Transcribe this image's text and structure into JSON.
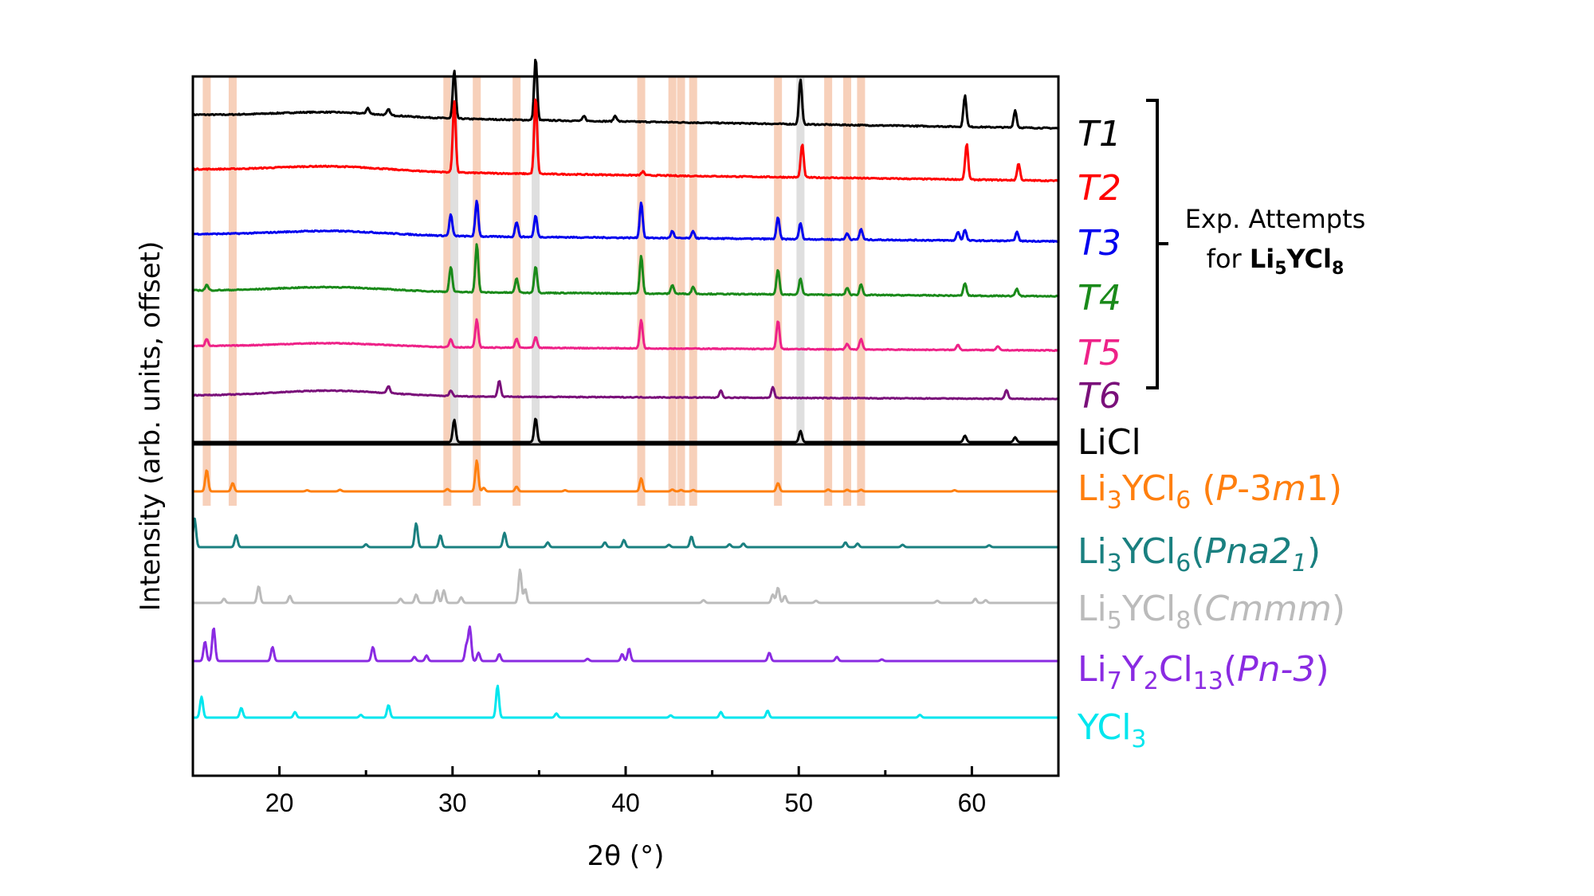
{
  "chart_data": {
    "type": "line",
    "xlabel": "2θ (°)",
    "ylabel": "Intensity (arb. units, offset)",
    "xlim": [
      15,
      65
    ],
    "xticks": [
      20,
      30,
      40,
      50,
      60
    ],
    "yticks": "none",
    "annotation": {
      "line1": "Exp. Attempts",
      "line2_prefix": "for ",
      "line2_formula": [
        "Li",
        "5",
        "YCl",
        "8"
      ]
    },
    "orange_bands": [
      15.8,
      17.3,
      29.7,
      31.4,
      33.7,
      40.9,
      42.7,
      43.2,
      43.9,
      48.8,
      51.7,
      52.8,
      53.6
    ],
    "gray_bands": [
      30.1,
      34.8,
      50.1
    ],
    "series": [
      {
        "id": "T1",
        "label": "T1",
        "color": "#000000",
        "base": 0.7,
        "hump": 0.1,
        "noise": 0.012,
        "peaks": [
          [
            25.1,
            0.12
          ],
          [
            26.3,
            0.12
          ],
          [
            30.1,
            1.0
          ],
          [
            34.8,
            1.3
          ],
          [
            37.6,
            0.1
          ],
          [
            39.4,
            0.12
          ],
          [
            50.1,
            0.95
          ],
          [
            59.6,
            0.65
          ],
          [
            62.5,
            0.36
          ]
        ]
      },
      {
        "id": "T2",
        "label": "T2",
        "color": "#ff0000",
        "base": 0.6,
        "hump": 0.1,
        "noise": 0.012,
        "peaks": [
          [
            30.1,
            1.5
          ],
          [
            34.8,
            1.6
          ],
          [
            41.0,
            0.08
          ],
          [
            50.2,
            0.7
          ],
          [
            59.7,
            0.75
          ],
          [
            62.7,
            0.35
          ]
        ]
      },
      {
        "id": "T3",
        "label": "T3",
        "color": "#0000ee",
        "base": 0.5,
        "hump": 0.12,
        "noise": 0.016,
        "peaks": [
          [
            29.9,
            0.6
          ],
          [
            31.4,
            1.0
          ],
          [
            33.7,
            0.42
          ],
          [
            34.8,
            0.6
          ],
          [
            40.9,
            1.0
          ],
          [
            42.7,
            0.2
          ],
          [
            43.9,
            0.2
          ],
          [
            48.8,
            0.6
          ],
          [
            50.1,
            0.45
          ],
          [
            52.8,
            0.18
          ],
          [
            53.6,
            0.3
          ],
          [
            59.2,
            0.25
          ],
          [
            59.6,
            0.3
          ],
          [
            62.6,
            0.25
          ]
        ]
      },
      {
        "id": "T4",
        "label": "T4",
        "color": "#1a8a1a",
        "base": 0.4,
        "hump": 0.12,
        "noise": 0.014,
        "peaks": [
          [
            15.8,
            0.15
          ],
          [
            29.9,
            0.7
          ],
          [
            31.4,
            1.35
          ],
          [
            33.7,
            0.4
          ],
          [
            34.8,
            0.75
          ],
          [
            40.9,
            1.05
          ],
          [
            42.7,
            0.25
          ],
          [
            43.9,
            0.2
          ],
          [
            48.8,
            0.7
          ],
          [
            50.1,
            0.45
          ],
          [
            52.8,
            0.2
          ],
          [
            53.6,
            0.3
          ],
          [
            59.6,
            0.35
          ],
          [
            62.6,
            0.2
          ]
        ]
      },
      {
        "id": "T5",
        "label": "T5",
        "color": "#ee2288",
        "base": 0.3,
        "hump": 0.1,
        "noise": 0.012,
        "peaks": [
          [
            15.8,
            0.2
          ],
          [
            29.9,
            0.22
          ],
          [
            31.4,
            0.78
          ],
          [
            33.7,
            0.25
          ],
          [
            34.8,
            0.3
          ],
          [
            40.9,
            0.8
          ],
          [
            48.8,
            0.8
          ],
          [
            52.8,
            0.15
          ],
          [
            53.6,
            0.3
          ],
          [
            59.2,
            0.15
          ],
          [
            61.5,
            0.1
          ]
        ]
      },
      {
        "id": "T6",
        "label": "T6",
        "color": "#7a107a",
        "base": 0.25,
        "hump": 0.15,
        "noise": 0.012,
        "peaks": [
          [
            26.3,
            0.2
          ],
          [
            29.9,
            0.15
          ],
          [
            32.7,
            0.45
          ],
          [
            45.5,
            0.2
          ],
          [
            48.5,
            0.3
          ],
          [
            62.0,
            0.25
          ]
        ]
      },
      {
        "id": "LiCl",
        "label": "LiCl",
        "color": "#000000",
        "base": 0.0,
        "hump": 0.0,
        "noise": 0.0,
        "peaks": [
          [
            30.1,
            0.7
          ],
          [
            34.8,
            0.75
          ],
          [
            50.1,
            0.35
          ],
          [
            59.6,
            0.2
          ],
          [
            62.5,
            0.15
          ]
        ]
      },
      {
        "id": "Li3YCl6-P3m1",
        "label": "Li3YCl6 (P-3m1)",
        "color": "#ff7f0e",
        "base": 0.0,
        "hump": 0.0,
        "noise": 0.0,
        "peaks": [
          [
            15.8,
            0.9
          ],
          [
            17.3,
            0.35
          ],
          [
            21.6,
            0.05
          ],
          [
            23.5,
            0.07
          ],
          [
            29.7,
            0.1
          ],
          [
            31.4,
            1.3
          ],
          [
            31.8,
            0.15
          ],
          [
            33.7,
            0.2
          ],
          [
            36.5,
            0.05
          ],
          [
            40.9,
            0.55
          ],
          [
            42.7,
            0.08
          ],
          [
            43.2,
            0.06
          ],
          [
            43.9,
            0.06
          ],
          [
            48.8,
            0.35
          ],
          [
            51.7,
            0.08
          ],
          [
            52.8,
            0.07
          ],
          [
            53.6,
            0.07
          ],
          [
            59.0,
            0.05
          ]
        ]
      },
      {
        "id": "Li3YCl6-Pna21",
        "label": "Li3YCl6 (Pna21)",
        "color": "#1a8080",
        "base": 0.0,
        "hump": 0.0,
        "noise": 0.0,
        "peaks": [
          [
            15.1,
            1.2
          ],
          [
            17.5,
            0.5
          ],
          [
            25.0,
            0.12
          ],
          [
            27.9,
            1.0
          ],
          [
            29.3,
            0.5
          ],
          [
            33.0,
            0.6
          ],
          [
            35.5,
            0.2
          ],
          [
            38.8,
            0.2
          ],
          [
            39.9,
            0.3
          ],
          [
            42.5,
            0.1
          ],
          [
            43.8,
            0.45
          ],
          [
            46.0,
            0.12
          ],
          [
            46.8,
            0.15
          ],
          [
            52.7,
            0.2
          ],
          [
            53.4,
            0.15
          ],
          [
            56.0,
            0.1
          ],
          [
            61.0,
            0.08
          ]
        ]
      },
      {
        "id": "Li5YCl8-Cmmm",
        "label": "Li5YCl8 (Cmmm)",
        "color": "#bbbbbb",
        "base": 0.0,
        "hump": 0.0,
        "noise": 0.0,
        "peaks": [
          [
            16.8,
            0.15
          ],
          [
            18.8,
            0.6
          ],
          [
            20.6,
            0.25
          ],
          [
            27.0,
            0.15
          ],
          [
            27.9,
            0.3
          ],
          [
            29.1,
            0.45
          ],
          [
            29.5,
            0.45
          ],
          [
            30.5,
            0.2
          ],
          [
            33.9,
            1.2
          ],
          [
            34.2,
            0.5
          ],
          [
            44.5,
            0.1
          ],
          [
            48.5,
            0.3
          ],
          [
            48.8,
            0.55
          ],
          [
            49.2,
            0.25
          ],
          [
            51.0,
            0.08
          ],
          [
            58.0,
            0.08
          ],
          [
            60.2,
            0.15
          ],
          [
            60.8,
            0.1
          ]
        ]
      },
      {
        "id": "Li7Y2Cl13-Pn3",
        "label": "Li7Y2Cl13 (Pn-3)",
        "color": "#8a2be2",
        "base": 0.0,
        "hump": 0.0,
        "noise": 0.0,
        "peaks": [
          [
            15.7,
            0.7
          ],
          [
            16.2,
            1.2
          ],
          [
            19.6,
            0.5
          ],
          [
            25.4,
            0.5
          ],
          [
            27.8,
            0.15
          ],
          [
            28.5,
            0.2
          ],
          [
            30.8,
            0.55
          ],
          [
            31.0,
            1.2
          ],
          [
            31.5,
            0.3
          ],
          [
            32.7,
            0.25
          ],
          [
            37.8,
            0.08
          ],
          [
            39.8,
            0.25
          ],
          [
            40.2,
            0.45
          ],
          [
            48.3,
            0.3
          ],
          [
            52.2,
            0.15
          ],
          [
            54.8,
            0.06
          ]
        ]
      },
      {
        "id": "YCl3",
        "label": "YCl3",
        "color": "#00e6ee",
        "base": 0.0,
        "hump": 0.0,
        "noise": 0.0,
        "peaks": [
          [
            15.5,
            0.75
          ],
          [
            17.8,
            0.35
          ],
          [
            20.9,
            0.2
          ],
          [
            24.7,
            0.1
          ],
          [
            26.3,
            0.45
          ],
          [
            32.6,
            1.15
          ],
          [
            36.0,
            0.15
          ],
          [
            42.6,
            0.08
          ],
          [
            45.5,
            0.2
          ],
          [
            48.2,
            0.25
          ],
          [
            57.0,
            0.1
          ]
        ]
      }
    ]
  },
  "labels": {
    "T1": "T1",
    "T2": "T2",
    "T3": "T3",
    "T4": "T4",
    "T5": "T5",
    "T6": "T6",
    "LiCl": "LiCl",
    "p3m1": {
      "a": "Li",
      "a_sub": "3",
      "b": "YCl",
      "b_sub": "6",
      "open": " (",
      "sg": "P",
      "sg2": "-3",
      "sg3": "m",
      "sg4": "1",
      "close": ")"
    },
    "pna21": {
      "a": "Li",
      "a_sub": "3",
      "b": "YCl",
      "b_sub": "6",
      "open": "(",
      "sg": "Pna2",
      "sg_sub": "1",
      "close": ")"
    },
    "cmmm": {
      "a": "Li",
      "a_sub": "5",
      "b": "YCl",
      "b_sub": "8",
      "open": "(",
      "sg": "Cmmm",
      "close": ")"
    },
    "pn3": {
      "a": "Li",
      "a_sub": "7",
      "b": "Y",
      "b_sub": "2",
      "c": "Cl",
      "c_sub": "13",
      "open": "(",
      "sg": "Pn-3",
      "close": ")"
    },
    "ycl3": {
      "a": "YCl",
      "a_sub": "3"
    }
  }
}
